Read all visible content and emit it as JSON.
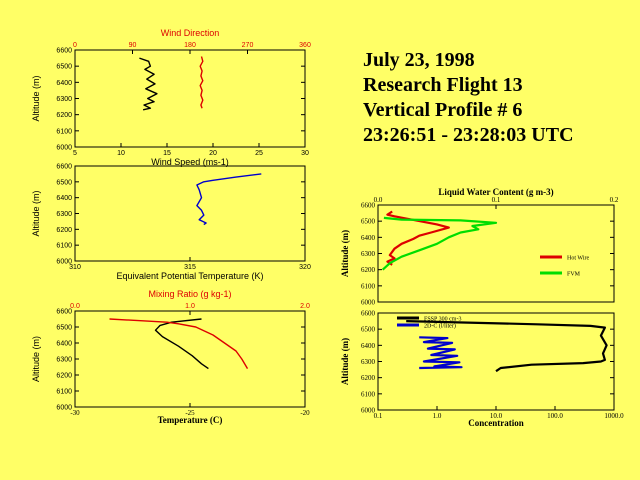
{
  "header": {
    "date": "July 23, 1998",
    "flight": "Research Flight 13",
    "profile": "Vertical Profile # 6",
    "time_range": "23:26:51 - 23:28:03 UTC"
  },
  "colors": {
    "background": "#ffff66",
    "red": "#dd0000",
    "blue": "#0000cc",
    "green": "#00dd00",
    "black": "#000000"
  },
  "chart_data": [
    {
      "type": "line",
      "title": "Wind Direction",
      "xlabel": "Wind Speed (ms-1)",
      "ylabel": "Altitude (m)",
      "top_axis": {
        "ticks": [
          0,
          90,
          180,
          270,
          360
        ],
        "range": [
          0,
          360
        ]
      },
      "bottom_axis": {
        "ticks": [
          5,
          10,
          15,
          20,
          25,
          30
        ],
        "range": [
          5,
          30
        ]
      },
      "y_ticks": [
        6000,
        6100,
        6200,
        6300,
        6400,
        6500,
        6600
      ],
      "ylim": [
        6000,
        6600
      ],
      "series": [
        {
          "name": "Wind Speed",
          "color": "#000000",
          "axis": "bottom",
          "x": [
            12.0,
            13.0,
            13.2,
            12.6,
            13.6,
            12.8,
            13.7,
            12.7,
            13.9,
            12.9,
            13.6,
            12.5,
            13.2,
            12.4
          ],
          "y": [
            6550,
            6530,
            6500,
            6480,
            6450,
            6420,
            6390,
            6360,
            6330,
            6300,
            6280,
            6260,
            6240,
            6230
          ]
        },
        {
          "name": "Wind Direction",
          "color": "#dd0000",
          "axis": "top",
          "x": [
            198,
            200,
            196,
            199,
            197,
            200,
            196,
            199,
            197,
            200,
            197,
            199
          ],
          "y": [
            6560,
            6530,
            6500,
            6470,
            6440,
            6410,
            6380,
            6350,
            6320,
            6290,
            6260,
            6240
          ]
        }
      ]
    },
    {
      "type": "line",
      "xlabel": "Equivalent Potential Temperature (K)",
      "ylabel": "Altitude (m)",
      "bottom_axis": {
        "ticks": [
          310,
          315,
          320
        ],
        "range": [
          310,
          320
        ]
      },
      "y_ticks": [
        6000,
        6100,
        6200,
        6300,
        6400,
        6500,
        6600
      ],
      "ylim": [
        6000,
        6600
      ],
      "series": [
        {
          "name": "Theta-e",
          "color": "#0000cc",
          "axis": "bottom",
          "x": [
            318.1,
            317.0,
            316.0,
            315.6,
            315.3,
            315.4,
            315.5,
            315.3,
            315.5,
            315.6,
            315.4,
            315.7,
            315.6
          ],
          "y": [
            6550,
            6530,
            6510,
            6500,
            6480,
            6450,
            6400,
            6350,
            6320,
            6290,
            6260,
            6240,
            6230
          ]
        }
      ]
    },
    {
      "type": "line",
      "title": "Mixing Ratio (g kg-1)",
      "xlabel": "Temperature (C)",
      "ylabel": "Altitude (m)",
      "top_axis": {
        "ticks": [
          0.0,
          1.0,
          2.0
        ],
        "range": [
          0,
          2
        ]
      },
      "bottom_axis": {
        "ticks": [
          -30,
          -25,
          -20
        ],
        "range": [
          -30,
          -20
        ]
      },
      "y_ticks": [
        6000,
        6100,
        6200,
        6300,
        6400,
        6500,
        6600
      ],
      "ylim": [
        6000,
        6600
      ],
      "series": [
        {
          "name": "Temperature",
          "color": "#000000",
          "axis": "bottom",
          "x": [
            -24.5,
            -25.8,
            -26.3,
            -26.5,
            -26.2,
            -25.5,
            -24.9,
            -24.5,
            -24.2
          ],
          "y": [
            6550,
            6530,
            6510,
            6480,
            6440,
            6380,
            6320,
            6270,
            6240
          ]
        },
        {
          "name": "Mixing Ratio",
          "color": "#dd0000",
          "axis": "top",
          "x": [
            0.3,
            0.55,
            0.8,
            0.9,
            1.05,
            1.2,
            1.3,
            1.4,
            1.45,
            1.5
          ],
          "y": [
            6550,
            6540,
            6530,
            6520,
            6500,
            6450,
            6400,
            6350,
            6300,
            6240
          ]
        }
      ]
    },
    {
      "type": "line",
      "title": "Liquid Water Content (g m-3)",
      "ylabel": "Altitude (m)",
      "top_axis": {
        "ticks": [
          0.0,
          0.1,
          0.2
        ],
        "range": [
          0,
          0.2
        ]
      },
      "y_ticks": [
        6000,
        6100,
        6200,
        6300,
        6400,
        6500,
        6600
      ],
      "ylim": [
        6000,
        6600
      ],
      "legend": [
        "Hot Wire",
        "FVM"
      ],
      "legend_position": "right",
      "series": [
        {
          "name": "Hot Wire",
          "color": "#dd0000",
          "axis": "top",
          "x": [
            0.012,
            0.008,
            0.014,
            0.05,
            0.06,
            0.045,
            0.035,
            0.03,
            0.02,
            0.014,
            0.01,
            0.014,
            0.008,
            0.012
          ],
          "y": [
            6560,
            6540,
            6530,
            6480,
            6460,
            6430,
            6410,
            6390,
            6360,
            6330,
            6290,
            6270,
            6250,
            6230
          ]
        },
        {
          "name": "FVM",
          "color": "#00dd00",
          "axis": "top",
          "x": [
            0.005,
            0.02,
            0.07,
            0.1,
            0.08,
            0.085,
            0.07,
            0.06,
            0.05,
            0.035,
            0.02,
            0.01,
            0.004
          ],
          "y": [
            6520,
            6510,
            6505,
            6490,
            6470,
            6450,
            6430,
            6400,
            6360,
            6320,
            6280,
            6240,
            6200
          ]
        }
      ]
    },
    {
      "type": "line",
      "xlabel": "Concentration",
      "ylabel": "Altitude (m)",
      "bottom_axis": {
        "ticks": [
          0.1,
          1.0,
          10.0,
          100.0,
          1000.0
        ],
        "range": [
          0.1,
          1000
        ],
        "scale": "log"
      },
      "y_ticks": [
        6000,
        6100,
        6200,
        6300,
        6400,
        6500,
        6600
      ],
      "ylim": [
        6000,
        6600
      ],
      "legend": [
        "FSSP 300 cm-3",
        "2D-C (l/liter)"
      ],
      "legend_position": "top-left",
      "series": [
        {
          "name": "FSSP 300 cm-3",
          "color": "#000000",
          "axis": "bottom",
          "x": [
            0.3,
            50,
            400,
            700,
            600,
            750,
            650,
            700,
            600,
            300,
            40,
            12,
            10
          ],
          "y": [
            6550,
            6530,
            6520,
            6510,
            6460,
            6400,
            6350,
            6310,
            6300,
            6290,
            6280,
            6260,
            6240
          ]
        },
        {
          "name": "2D-C (l/liter)",
          "color": "#0000cc",
          "axis": "bottom",
          "x": [
            0.5,
            1.5,
            0.6,
            1.8,
            0.7,
            2.0,
            0.8,
            2.2,
            0.6,
            2.4,
            0.9,
            2.6,
            0.5
          ],
          "y": [
            6450,
            6445,
            6420,
            6415,
            6380,
            6375,
            6340,
            6335,
            6300,
            6295,
            6270,
            6265,
            6260
          ]
        }
      ]
    }
  ]
}
